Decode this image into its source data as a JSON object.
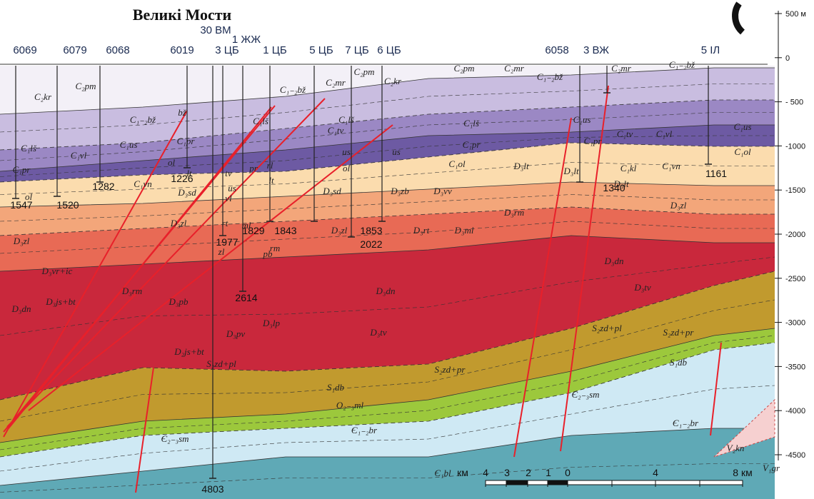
{
  "title": "Великі Мости",
  "depth_axis": {
    "labels": [
      "500 м",
      "0",
      "- 500",
      "-1000",
      "-1500",
      "-2000",
      "-2500",
      "-3000",
      "-3500",
      "-4000",
      "-4500"
    ]
  },
  "wells": [
    {
      "name": "6069",
      "depth": "1547"
    },
    {
      "name": "6079",
      "depth": "1520"
    },
    {
      "name": "6068",
      "depth": "1282"
    },
    {
      "name": "6019",
      "depth": "1226"
    },
    {
      "name": "30 ВМ",
      "depth": "4803"
    },
    {
      "name": "3 ЦБ",
      "depth": "1977"
    },
    {
      "name": "1 ЖЖ",
      "depth": "2614"
    },
    {
      "name": "1 ЦБ",
      "depth": "1829"
    },
    {
      "name": "5 ЦБ",
      "depth": "1843"
    },
    {
      "name": "7 ЦБ",
      "depth": "2022"
    },
    {
      "name": "6 ЦБ",
      "depth": "1853"
    },
    {
      "name": "6058",
      "depth": "1340"
    },
    {
      "name": "3 ВЖ"
    },
    {
      "name": "5 ІЛ",
      "depth": "1161"
    }
  ],
  "formations": [
    "C₂kr",
    "C₂pm",
    "C₁₋₂bž",
    "C₁lš",
    "C₁vl",
    "C₁us",
    "C₁pr",
    "C₁vn",
    "ol",
    "bž",
    "C₁pr",
    "ol",
    "lt",
    "D₃sd",
    "C₁lš",
    "C₁₋₂bž",
    "C₂mr",
    "C₂pm",
    "C₂kr",
    "C₂pm",
    "C₂mr",
    "C₁₋₂bž",
    "C₂mr",
    "C₁₋₂bž",
    "C₁lš",
    "C₁lš",
    "C₁tv",
    "C₁pr",
    "C₁us",
    "C₁pr",
    "C₁tv",
    "C₁vl",
    "C₁us",
    "C₁ol",
    "C₁vn",
    "C₁kl",
    "D₃lt",
    "D₃lt",
    "D₃lt",
    "C₁ol",
    "us",
    "us",
    "ol",
    "D₃vv",
    "D₃zb",
    "D₃sd",
    "D₃zl",
    "D₃rm",
    "D₃rt",
    "D₃ml",
    "D₃zl",
    "D₃zl",
    "D₃zl",
    "D₃vr+ic",
    "D₃rm",
    "D₃js+bt",
    "D₃dn",
    "D₃pb",
    "D₃lp",
    "D₃pv",
    "D₂js+bt",
    "D₃dn",
    "D₃tv",
    "D₃dn",
    "D₃tv",
    "S₂zd+pl",
    "S₂zd+pr",
    "S₁db",
    "S₂zd+pl",
    "S₂zd+pr",
    "S₁db",
    "O₂₋₃ml",
    "Є₂₋₃sm",
    "Є₁₋₂br",
    "Є₁₋₂br",
    "Є₂₋₃sm",
    "Є₁bl",
    "V₂kn",
    "V₁gr",
    "rt",
    "ml",
    "zl",
    "rm",
    "pb",
    "pr",
    "rl",
    "lt",
    "tv",
    "us",
    "vl"
  ],
  "scale": {
    "labels": [
      "км",
      "4",
      "3",
      "2",
      "1",
      "0",
      "4",
      "8 км"
    ]
  }
}
